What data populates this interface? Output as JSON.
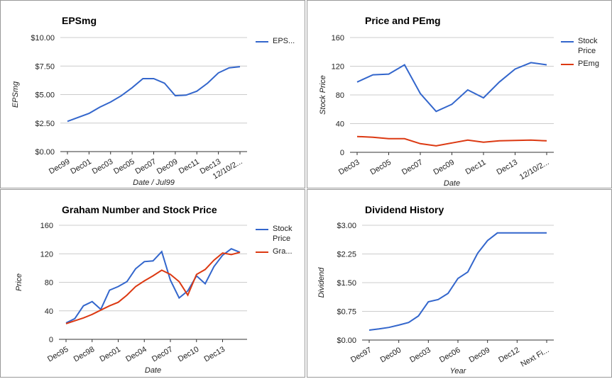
{
  "chart_data": [
    {
      "type": "line",
      "title": "EPSmg",
      "x_label": "Date / Jul99",
      "y_label": "EPSmg",
      "categories": [
        "Dec99",
        null,
        "Dec01",
        null,
        "Dec03",
        null,
        "Dec05",
        null,
        "Dec07",
        null,
        "Dec09",
        null,
        "Dec11",
        null,
        "Dec13",
        null,
        "12/10/2..."
      ],
      "series": [
        {
          "name": "EPS...",
          "color": "#3366cc",
          "values": [
            2.65,
            3.0,
            3.35,
            3.9,
            4.35,
            4.9,
            5.6,
            6.4,
            6.4,
            6.0,
            4.9,
            4.95,
            5.3,
            6.0,
            6.9,
            7.35,
            7.45
          ]
        }
      ],
      "ylim": [
        0,
        10
      ],
      "yticks": [
        {
          "value": 0,
          "label": "$0.00"
        },
        {
          "value": 2.5,
          "label": "$2.50"
        },
        {
          "value": 5,
          "label": "$5.00"
        },
        {
          "value": 7.5,
          "label": "$7.50"
        },
        {
          "value": 10,
          "label": "$10.00"
        }
      ],
      "grid": true,
      "legend": "right"
    },
    {
      "type": "line",
      "title": "Price and PEmg",
      "x_label": "Date",
      "y_label": "Stock Price",
      "categories": [
        "Dec03",
        null,
        "Dec05",
        null,
        "Dec07",
        null,
        "Dec09",
        null,
        "Dec11",
        null,
        "Dec13",
        null,
        "12/10/2..."
      ],
      "series": [
        {
          "name": "Stock Price",
          "color": "#3366cc",
          "values": [
            98,
            108,
            109,
            122,
            82,
            57,
            67,
            87,
            76,
            98,
            116,
            125,
            122
          ]
        },
        {
          "name": "PEmg",
          "color": "#dc3912",
          "values": [
            22,
            21,
            19,
            19,
            12,
            9,
            13,
            17,
            14,
            16,
            16.5,
            17,
            16
          ]
        }
      ],
      "ylim": [
        0,
        160
      ],
      "yticks": [
        0,
        40,
        80,
        120,
        160
      ],
      "grid": true,
      "legend": "right"
    },
    {
      "type": "line",
      "title": "Graham Number and Stock Price",
      "x_label": "Date",
      "y_label": "Price",
      "categories": [
        "Dec95",
        null,
        null,
        "Dec98",
        null,
        null,
        "Dec01",
        null,
        null,
        "Dec04",
        null,
        null,
        "Dec07",
        null,
        null,
        "Dec10",
        null,
        null,
        "Dec13",
        null,
        null
      ],
      "series": [
        {
          "name": "Stock Price",
          "color": "#3366cc",
          "values": [
            23,
            29,
            47,
            53,
            42,
            69,
            74,
            81,
            99,
            109,
            110,
            123,
            83,
            58,
            68,
            89,
            78,
            102,
            118,
            127,
            122
          ]
        },
        {
          "name": "Gra...",
          "color": "#dc3912",
          "values": [
            22,
            26,
            30,
            35,
            41,
            47,
            52,
            62,
            74,
            82,
            89,
            97,
            91,
            81,
            62,
            91,
            98,
            111,
            121,
            119,
            122
          ]
        }
      ],
      "ylim": [
        0,
        160
      ],
      "yticks": [
        0,
        40,
        80,
        120,
        160
      ],
      "grid": true,
      "legend": "right"
    },
    {
      "type": "line",
      "title": "Dividend History",
      "x_label": "Year",
      "y_label": "Dividend",
      "categories": [
        "Dec97",
        null,
        null,
        "Dec00",
        null,
        null,
        "Dec03",
        null,
        null,
        "Dec06",
        null,
        null,
        "Dec09",
        null,
        null,
        "Dec12",
        null,
        null,
        "Next Fi..."
      ],
      "series": [
        {
          "color": "#3366cc",
          "values": [
            0.26,
            0.29,
            0.33,
            0.39,
            0.46,
            0.63,
            1.0,
            1.06,
            1.22,
            1.61,
            1.78,
            2.27,
            2.6,
            2.8,
            2.8,
            2.8,
            2.8,
            2.8,
            2.8
          ]
        }
      ],
      "ylim": [
        0,
        3
      ],
      "yticks": [
        {
          "value": 0,
          "label": "$0.00"
        },
        {
          "value": 0.75,
          "label": "$0.75"
        },
        {
          "value": 1.5,
          "label": "$1.50"
        },
        {
          "value": 2.25,
          "label": "$2.25"
        },
        {
          "value": 3,
          "label": "$3.00"
        }
      ],
      "grid": true
    }
  ]
}
